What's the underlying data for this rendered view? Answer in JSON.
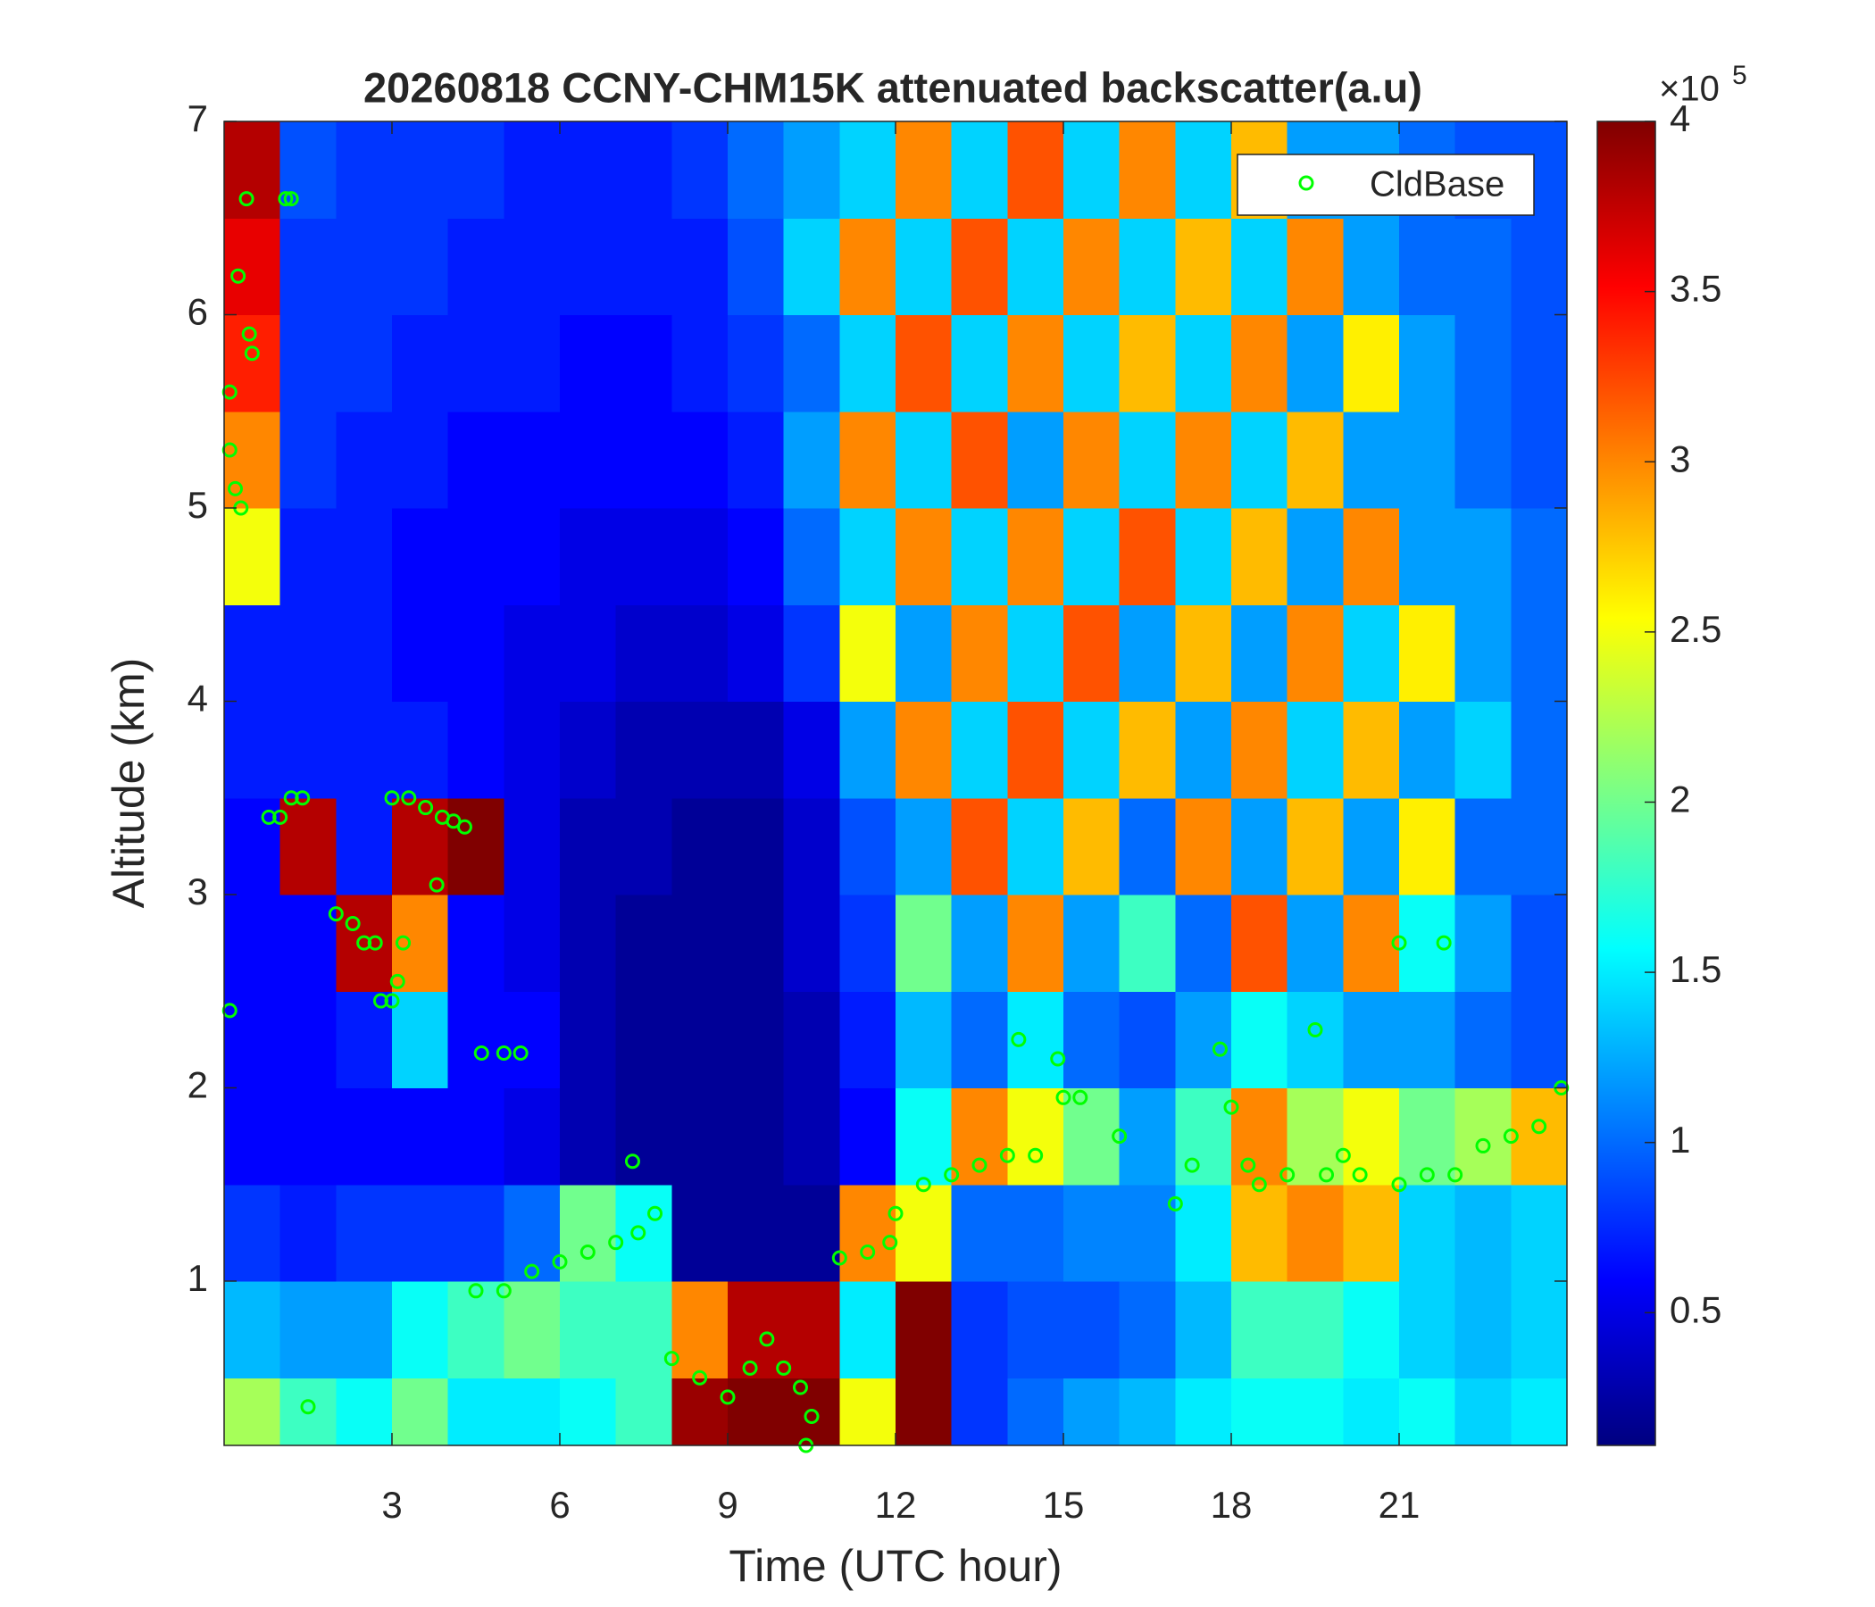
{
  "chart_data": {
    "type": "heatmap",
    "title": "20260818 CCNY-CHM15K attenuated backscatter(a.u)",
    "xlabel": "Time (UTC hour)",
    "ylabel": "Altitude (km)",
    "xlim": [
      0,
      24
    ],
    "ylim": [
      0.15,
      7
    ],
    "xticks": [
      3,
      6,
      9,
      12,
      15,
      18,
      21
    ],
    "yticks": [
      1,
      2,
      3,
      4,
      5,
      6,
      7
    ],
    "colormap": "jet",
    "clim": [
      0.11,
      4
    ],
    "cticks": [
      0.5,
      1,
      1.5,
      2,
      2.5,
      3,
      3.5,
      4
    ],
    "colorbar_multiplier": "×10",
    "colorbar_exponent": "5",
    "legend": "upper right",
    "xbins": [
      0,
      1,
      2,
      3,
      4,
      5,
      6,
      7,
      8,
      9,
      10,
      11,
      12,
      13,
      14,
      15,
      16,
      17,
      18,
      19,
      20,
      21,
      22,
      23,
      24
    ],
    "ybins": [
      0.15,
      0.5,
      1,
      1.5,
      2,
      2.5,
      3,
      3.5,
      4,
      4.5,
      5,
      5.5,
      6,
      6.5,
      7
    ],
    "z": [
      [
        2.2,
        1.8,
        1.6,
        2.0,
        1.5,
        1.5,
        1.6,
        1.8,
        3.9,
        4.0,
        4.0,
        2.5,
        4.0,
        0.8,
        1.0,
        1.2,
        1.3,
        1.5,
        1.6,
        1.6,
        1.5,
        1.6,
        1.4,
        1.5
      ],
      [
        1.3,
        1.2,
        1.2,
        1.6,
        1.8,
        2.0,
        1.8,
        1.8,
        3.0,
        3.8,
        3.8,
        1.5,
        4.0,
        0.8,
        0.9,
        0.9,
        1.0,
        1.3,
        1.8,
        1.8,
        1.6,
        1.4,
        1.3,
        1.4
      ],
      [
        0.8,
        0.7,
        0.8,
        0.8,
        0.8,
        1.0,
        2.0,
        1.6,
        0.2,
        0.2,
        0.2,
        3.0,
        2.5,
        1.0,
        1.0,
        1.1,
        1.1,
        1.5,
        2.8,
        3.0,
        2.8,
        1.4,
        1.3,
        1.4
      ],
      [
        0.6,
        0.6,
        0.6,
        0.6,
        0.6,
        0.5,
        0.3,
        0.2,
        0.2,
        0.2,
        0.3,
        0.6,
        1.6,
        3.0,
        2.5,
        2.0,
        1.2,
        1.8,
        3.0,
        2.2,
        2.5,
        2.0,
        2.2,
        2.8
      ],
      [
        0.6,
        0.6,
        0.7,
        1.4,
        0.6,
        0.6,
        0.3,
        0.2,
        0.2,
        0.2,
        0.3,
        0.7,
        1.3,
        1.0,
        1.5,
        1.0,
        0.9,
        1.2,
        1.6,
        1.4,
        1.2,
        1.2,
        1.0,
        0.9
      ],
      [
        0.6,
        0.6,
        3.8,
        3.0,
        0.6,
        0.5,
        0.3,
        0.2,
        0.2,
        0.2,
        0.4,
        0.8,
        2.0,
        1.2,
        3.0,
        1.2,
        1.8,
        1.0,
        3.2,
        1.2,
        3.0,
        1.6,
        1.2,
        0.9
      ],
      [
        0.6,
        3.8,
        0.7,
        3.8,
        4.0,
        0.5,
        0.3,
        0.3,
        0.2,
        0.2,
        0.4,
        0.9,
        1.2,
        3.2,
        1.4,
        2.8,
        1.0,
        3.0,
        1.2,
        2.8,
        1.2,
        2.6,
        1.0,
        1.0
      ],
      [
        0.7,
        0.7,
        0.7,
        0.7,
        0.6,
        0.5,
        0.4,
        0.3,
        0.3,
        0.3,
        0.5,
        1.2,
        3.0,
        1.4,
        3.2,
        1.4,
        2.8,
        1.2,
        3.0,
        1.4,
        2.8,
        1.2,
        1.4,
        1.0
      ],
      [
        0.7,
        0.7,
        0.7,
        0.6,
        0.6,
        0.5,
        0.5,
        0.4,
        0.4,
        0.5,
        0.8,
        2.5,
        1.2,
        3.0,
        1.4,
        3.2,
        1.2,
        2.8,
        1.2,
        3.0,
        1.4,
        2.6,
        1.2,
        1.0
      ],
      [
        2.5,
        0.7,
        0.7,
        0.6,
        0.6,
        0.6,
        0.5,
        0.5,
        0.5,
        0.6,
        1.0,
        1.4,
        3.0,
        1.4,
        3.0,
        1.4,
        3.2,
        1.4,
        2.8,
        1.2,
        3.0,
        1.2,
        1.2,
        1.0
      ],
      [
        3.0,
        0.8,
        0.7,
        0.7,
        0.6,
        0.6,
        0.6,
        0.6,
        0.6,
        0.7,
        1.2,
        3.0,
        1.4,
        3.2,
        1.2,
        3.0,
        1.4,
        3.0,
        1.4,
        2.8,
        1.2,
        1.2,
        1.0,
        0.9
      ],
      [
        3.4,
        0.8,
        0.8,
        0.7,
        0.7,
        0.7,
        0.6,
        0.6,
        0.7,
        0.8,
        1.0,
        1.4,
        3.2,
        1.4,
        3.0,
        1.4,
        2.8,
        1.4,
        3.0,
        1.2,
        2.6,
        1.2,
        1.0,
        0.9
      ],
      [
        3.6,
        0.8,
        0.8,
        0.8,
        0.7,
        0.7,
        0.7,
        0.7,
        0.7,
        0.9,
        1.4,
        3.0,
        1.4,
        3.2,
        1.4,
        3.0,
        1.4,
        2.8,
        1.4,
        3.0,
        1.2,
        1.0,
        1.0,
        0.9
      ],
      [
        3.8,
        0.9,
        0.8,
        0.8,
        0.8,
        0.7,
        0.7,
        0.7,
        0.8,
        1.0,
        1.2,
        1.4,
        3.0,
        1.4,
        3.2,
        1.4,
        3.0,
        1.4,
        2.8,
        1.2,
        1.2,
        1.0,
        0.9,
        0.9
      ]
    ],
    "series": [
      {
        "name": "CldBase",
        "color": "#00ff00",
        "x": [
          0.1,
          0.1,
          0.2,
          0.3,
          0.25,
          0.4,
          0.45,
          0.5,
          0.1,
          1.1,
          1.2,
          0.8,
          1.0,
          1.2,
          1.4,
          1.5,
          2.0,
          2.3,
          2.5,
          2.7,
          2.8,
          3.0,
          3.1,
          3.2,
          3.0,
          3.3,
          3.6,
          3.9,
          4.1,
          4.3,
          3.8,
          4.6,
          5.0,
          5.3,
          4.5,
          5.0,
          5.5,
          6.0,
          6.5,
          7.0,
          7.4,
          7.7,
          7.3,
          8.0,
          8.5,
          9.0,
          9.4,
          9.7,
          10.0,
          10.3,
          10.5,
          10.4,
          11.0,
          11.5,
          11.9,
          12.0,
          12.5,
          13.0,
          13.5,
          14.0,
          14.2,
          14.5,
          14.9,
          15.0,
          15.3,
          16.0,
          17.0,
          17.3,
          17.8,
          18.0,
          18.3,
          18.5,
          19.0,
          19.5,
          19.7,
          20.0,
          20.3,
          21.0,
          21.0,
          21.5,
          22.0,
          21.8,
          22.5,
          23.0,
          23.5,
          23.9
        ],
        "y": [
          5.6,
          5.3,
          5.1,
          5.0,
          6.2,
          6.6,
          5.9,
          5.8,
          2.4,
          6.6,
          6.6,
          3.4,
          3.4,
          3.5,
          3.5,
          0.35,
          2.9,
          2.85,
          2.75,
          2.75,
          2.45,
          2.45,
          2.55,
          2.75,
          3.5,
          3.5,
          3.45,
          3.4,
          3.38,
          3.35,
          3.05,
          2.18,
          2.18,
          2.18,
          0.95,
          0.95,
          1.05,
          1.1,
          1.15,
          1.2,
          1.25,
          1.35,
          1.62,
          0.6,
          0.5,
          0.4,
          0.55,
          0.7,
          0.55,
          0.45,
          0.3,
          0.15,
          1.12,
          1.15,
          1.2,
          1.35,
          1.5,
          1.55,
          1.6,
          1.65,
          2.25,
          1.65,
          2.15,
          1.95,
          1.95,
          1.75,
          1.4,
          1.6,
          2.2,
          1.9,
          1.6,
          1.5,
          1.55,
          2.3,
          1.55,
          1.65,
          1.55,
          2.75,
          1.5,
          1.55,
          1.55,
          2.75,
          1.7,
          1.75,
          1.8,
          2.0
        ]
      }
    ]
  }
}
